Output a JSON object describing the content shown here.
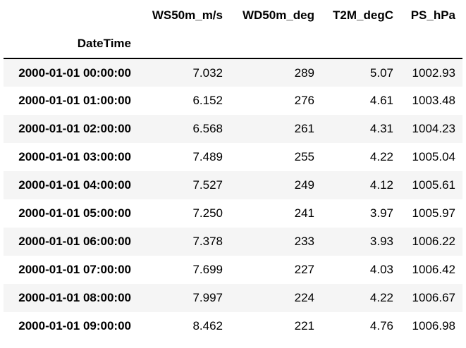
{
  "table": {
    "columns": [
      "WS50m_m/s",
      "WD50m_deg",
      "T2M_degC",
      "PS_hPa"
    ],
    "index_name": "DateTime",
    "rows": [
      {
        "index": "2000-01-01 00:00:00",
        "values": [
          "7.032",
          "289",
          "5.07",
          "1002.93"
        ]
      },
      {
        "index": "2000-01-01 01:00:00",
        "values": [
          "6.152",
          "276",
          "4.61",
          "1003.48"
        ]
      },
      {
        "index": "2000-01-01 02:00:00",
        "values": [
          "6.568",
          "261",
          "4.31",
          "1004.23"
        ]
      },
      {
        "index": "2000-01-01 03:00:00",
        "values": [
          "7.489",
          "255",
          "4.22",
          "1005.04"
        ]
      },
      {
        "index": "2000-01-01 04:00:00",
        "values": [
          "7.527",
          "249",
          "4.12",
          "1005.61"
        ]
      },
      {
        "index": "2000-01-01 05:00:00",
        "values": [
          "7.250",
          "241",
          "3.97",
          "1005.97"
        ]
      },
      {
        "index": "2000-01-01 06:00:00",
        "values": [
          "7.378",
          "233",
          "3.93",
          "1006.22"
        ]
      },
      {
        "index": "2000-01-01 07:00:00",
        "values": [
          "7.699",
          "227",
          "4.03",
          "1006.42"
        ]
      },
      {
        "index": "2000-01-01 08:00:00",
        "values": [
          "7.997",
          "224",
          "4.22",
          "1006.67"
        ]
      },
      {
        "index": "2000-01-01 09:00:00",
        "values": [
          "8.462",
          "221",
          "4.76",
          "1006.98"
        ]
      }
    ]
  },
  "colors": {
    "stripe": "#f5f5f5",
    "background": "#ffffff",
    "text": "#000000",
    "header_rule": "#000000"
  }
}
